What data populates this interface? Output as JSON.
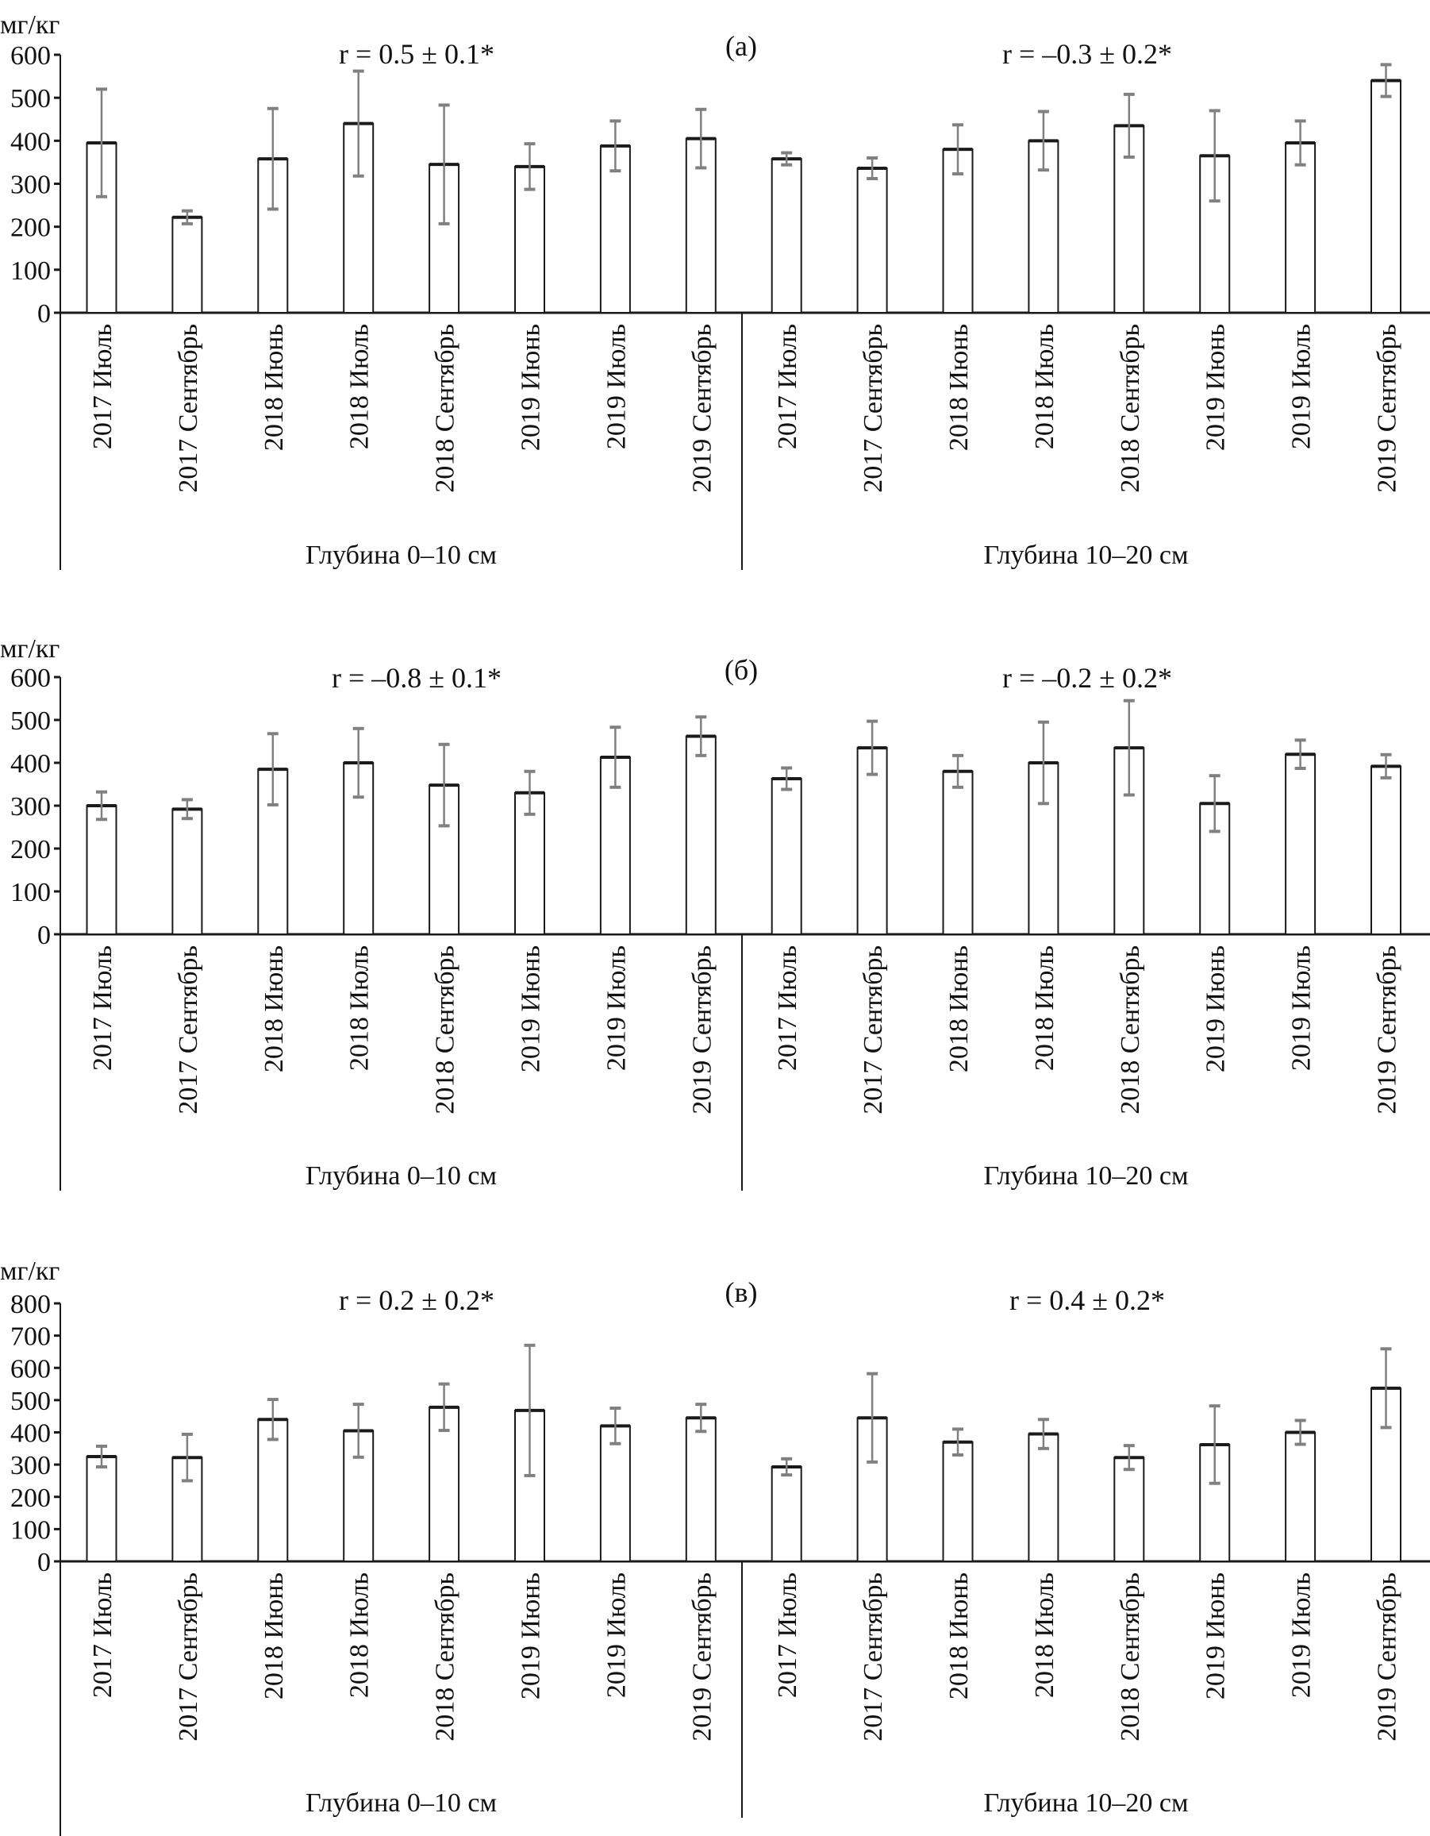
{
  "chart_data": [
    {
      "type": "bar",
      "panel_label": "(а)",
      "ylabel": "мг/кг",
      "ylim": [
        0,
        600
      ],
      "yticks": [
        0,
        100,
        200,
        300,
        400,
        500,
        600
      ],
      "categories": [
        "2017 Июль",
        "2017 Сентябрь",
        "2018 Июнь",
        "2018 Июль",
        "2018 Сентябрь",
        "2019 Июнь",
        "2019 Июль",
        "2019 Сентябрь"
      ],
      "groups": [
        {
          "label": "Глубина 0–10 см",
          "r_label": "r = 0.5 ± 0.1*",
          "values": [
            395,
            222,
            358,
            440,
            345,
            340,
            388,
            405
          ],
          "errors": [
            125,
            15,
            117,
            122,
            138,
            53,
            58,
            68
          ]
        },
        {
          "label": "Глубина 10–20 см",
          "r_label": "r = –0.3 ± 0.2*",
          "values": [
            358,
            336,
            380,
            400,
            435,
            365,
            395,
            540
          ],
          "errors": [
            14,
            24,
            57,
            68,
            73,
            105,
            51,
            37
          ]
        }
      ]
    },
    {
      "type": "bar",
      "panel_label": "(б)",
      "ylabel": "мг/кг",
      "ylim": [
        0,
        600
      ],
      "yticks": [
        0,
        100,
        200,
        300,
        400,
        500,
        600
      ],
      "categories": [
        "2017 Июль",
        "2017 Сентябрь",
        "2018 Июнь",
        "2018 Июль",
        "2018 Сентябрь",
        "2019 Июнь",
        "2019 Июль",
        "2019 Сентябрь"
      ],
      "groups": [
        {
          "label": "Глубина 0–10 см",
          "r_label": "r = –0.8 ± 0.1*",
          "values": [
            300,
            292,
            385,
            400,
            348,
            330,
            413,
            462
          ],
          "errors": [
            32,
            22,
            83,
            80,
            95,
            50,
            70,
            45
          ]
        },
        {
          "label": "Глубина 10–20 см",
          "r_label": "r = –0.2 ± 0.2*",
          "values": [
            363,
            435,
            380,
            400,
            435,
            305,
            420,
            392
          ],
          "errors": [
            25,
            62,
            37,
            95,
            110,
            65,
            33,
            27
          ]
        }
      ]
    },
    {
      "type": "bar",
      "panel_label": "(в)",
      "ylabel": "мг/кг",
      "ylim": [
        0,
        800
      ],
      "yticks": [
        0,
        100,
        200,
        300,
        400,
        500,
        600,
        700,
        800
      ],
      "categories": [
        "2017 Июль",
        "2017 Сентябрь",
        "2018 Июнь",
        "2018 Июль",
        "2018 Сентябрь",
        "2019 Июнь",
        "2019 Июль",
        "2019 Сентябрь"
      ],
      "groups": [
        {
          "label": "Глубина 0–10 см",
          "r_label": "r = 0.2 ± 0.2*",
          "values": [
            325,
            322,
            440,
            405,
            478,
            468,
            420,
            445
          ],
          "errors": [
            32,
            72,
            62,
            82,
            72,
            202,
            55,
            42
          ]
        },
        {
          "label": "Глубина 10–20 см",
          "r_label": "r = 0.4 ± 0.2*",
          "values": [
            293,
            445,
            370,
            395,
            322,
            362,
            400,
            537
          ],
          "errors": [
            25,
            137,
            40,
            45,
            37,
            120,
            37,
            122
          ]
        }
      ]
    }
  ],
  "colors": {
    "bar_fill": "#ffffff",
    "bar_stroke": "#1a1a1a",
    "error_bar": "#808080",
    "axis": "#1a1a1a"
  }
}
